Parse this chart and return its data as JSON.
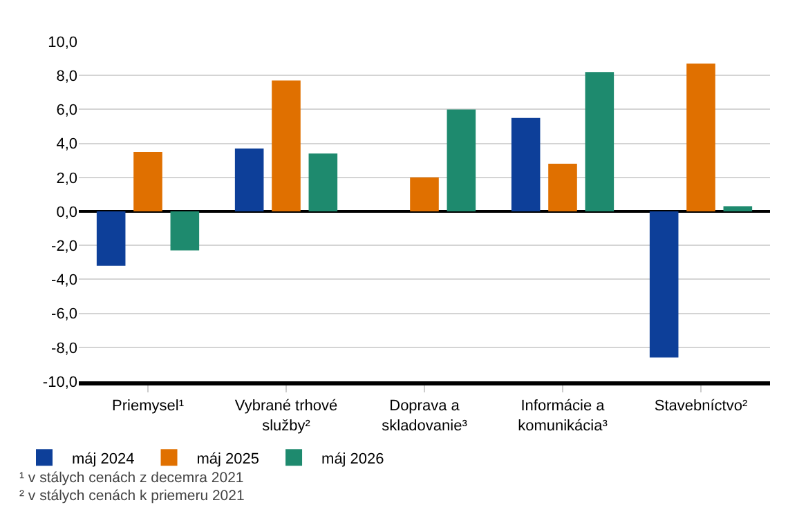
{
  "chart_data": {
    "type": "bar",
    "categories": [
      "Priemysel¹",
      "Vybrané trhové služby²",
      "Doprava a skladovanie³",
      "Informácie a komunikácia³",
      "Stavebníctvo²"
    ],
    "series": [
      {
        "name": "máj 2024",
        "color": "#0d3f99",
        "values": [
          -3.2,
          3.7,
          null,
          5.5,
          -8.6
        ]
      },
      {
        "name": "máj 2025",
        "color": "#e07000",
        "values": [
          3.5,
          7.7,
          2.0,
          2.8,
          8.7
        ]
      },
      {
        "name": "máj 2026",
        "color": "#1e8a6e",
        "values": [
          -2.3,
          3.4,
          6.0,
          8.2,
          0.3
        ]
      }
    ],
    "ylim": [
      -10,
      10
    ],
    "yticks": [
      {
        "value": -10,
        "label": "-10,0"
      },
      {
        "value": -8,
        "label": "-8,0"
      },
      {
        "value": -6,
        "label": "-6,0"
      },
      {
        "value": -4,
        "label": "-4,0"
      },
      {
        "value": -2,
        "label": "-2,0"
      },
      {
        "value": 0,
        "label": "0,0"
      },
      {
        "value": 2,
        "label": "2,0"
      },
      {
        "value": 4,
        "label": "4,0"
      },
      {
        "value": 6,
        "label": "6,0"
      },
      {
        "value": 8,
        "label": "8,0"
      },
      {
        "value": 10,
        "label": "10,0"
      }
    ],
    "grid": "y",
    "legend": "bottom",
    "annotations": [
      "¹ v stálych cenách z decemra 2021",
      "² v stálych cenách k priemeru 2021"
    ]
  }
}
